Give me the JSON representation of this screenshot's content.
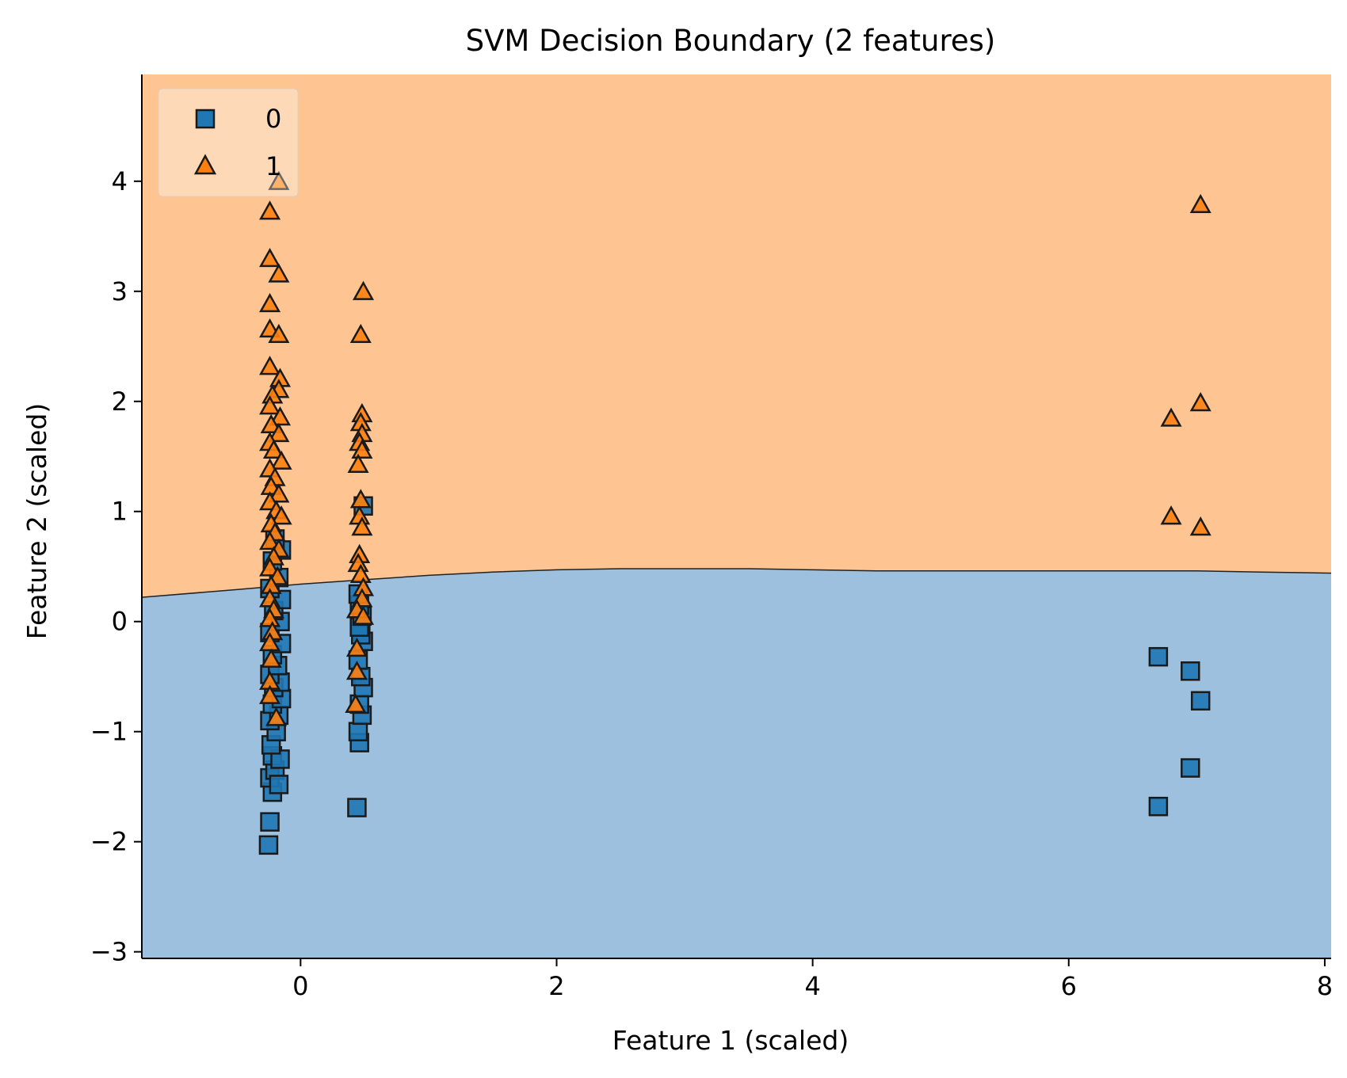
{
  "chart_data": {
    "type": "scatter",
    "title": "SVM Decision Boundary (2 features)",
    "xlabel": "Feature 1 (scaled)",
    "ylabel": "Feature 2 (scaled)",
    "xlim": [
      -1.24,
      8.05
    ],
    "ylim": [
      -3.06,
      4.97
    ],
    "xticks": [
      0,
      2,
      4,
      6,
      8
    ],
    "yticks": [
      -3,
      -2,
      -1,
      0,
      1,
      2,
      3,
      4
    ],
    "xtick_labels": [
      "0",
      "2",
      "4",
      "6",
      "8"
    ],
    "ytick_labels": [
      "−3",
      "−2",
      "−1",
      "0",
      "1",
      "2",
      "3",
      "4"
    ],
    "grid": false,
    "legend": {
      "placement": "top-left",
      "entries": [
        "0",
        "1"
      ]
    },
    "colors": {
      "class0_marker": "#1f77b4",
      "class1_marker": "#ff7f0e",
      "class0_region": "#9cc0dd",
      "class1_region": "#fec593",
      "marker_edge": "#1a1a1a"
    },
    "decision_boundary": {
      "x": [
        -1.24,
        -0.5,
        0,
        0.5,
        1.0,
        1.5,
        2.0,
        2.5,
        3.0,
        3.5,
        4.0,
        4.5,
        5.0,
        5.5,
        6.0,
        6.5,
        7.0,
        7.5,
        8.05
      ],
      "y": [
        0.22,
        0.29,
        0.34,
        0.38,
        0.42,
        0.45,
        0.47,
        0.48,
        0.48,
        0.48,
        0.47,
        0.46,
        0.46,
        0.46,
        0.46,
        0.46,
        0.46,
        0.45,
        0.44
      ]
    },
    "series": [
      {
        "name": "0",
        "marker": "square",
        "points": [
          [
            -0.25,
            -2.03
          ],
          [
            -0.24,
            -1.82
          ],
          [
            -0.22,
            -1.55
          ],
          [
            -0.24,
            -1.42
          ],
          [
            -0.2,
            -1.35
          ],
          [
            -0.22,
            -1.22
          ],
          [
            -0.17,
            -1.48
          ],
          [
            -0.16,
            -1.25
          ],
          [
            -0.23,
            -1.12
          ],
          [
            -0.19,
            -1.0
          ],
          [
            -0.24,
            -0.9
          ],
          [
            -0.17,
            -0.85
          ],
          [
            -0.22,
            -0.75
          ],
          [
            -0.15,
            -0.7
          ],
          [
            -0.21,
            -0.6
          ],
          [
            -0.16,
            -0.55
          ],
          [
            -0.24,
            -0.48
          ],
          [
            -0.18,
            -0.4
          ],
          [
            -0.22,
            -0.3
          ],
          [
            -0.15,
            -0.2
          ],
          [
            -0.24,
            -0.1
          ],
          [
            -0.16,
            0.0
          ],
          [
            -0.21,
            0.1
          ],
          [
            -0.15,
            0.2
          ],
          [
            -0.24,
            0.3
          ],
          [
            -0.17,
            0.4
          ],
          [
            -0.22,
            0.55
          ],
          [
            -0.15,
            0.65
          ],
          [
            -0.2,
            0.75
          ],
          [
            0.44,
            -1.69
          ],
          [
            0.46,
            -1.1
          ],
          [
            0.45,
            -1.0
          ],
          [
            0.48,
            -0.85
          ],
          [
            0.46,
            -0.75
          ],
          [
            0.49,
            -0.6
          ],
          [
            0.47,
            -0.5
          ],
          [
            0.45,
            -0.35
          ],
          [
            0.49,
            -0.18
          ],
          [
            0.47,
            -0.12
          ],
          [
            0.46,
            -0.05
          ],
          [
            0.48,
            0.05
          ],
          [
            0.46,
            0.15
          ],
          [
            0.45,
            0.25
          ],
          [
            0.49,
            1.05
          ],
          [
            6.7,
            -0.32
          ],
          [
            6.95,
            -0.45
          ],
          [
            7.03,
            -0.72
          ],
          [
            6.95,
            -1.33
          ],
          [
            6.7,
            -1.68
          ]
        ]
      },
      {
        "name": "1",
        "marker": "triangle",
        "points": [
          [
            -0.17,
            3.99
          ],
          [
            -0.24,
            3.72
          ],
          [
            -0.24,
            3.29
          ],
          [
            -0.17,
            3.15
          ],
          [
            -0.24,
            2.88
          ],
          [
            -0.24,
            2.65
          ],
          [
            -0.17,
            2.6
          ],
          [
            -0.24,
            2.31
          ],
          [
            -0.16,
            2.2
          ],
          [
            -0.17,
            2.1
          ],
          [
            -0.22,
            2.05
          ],
          [
            -0.24,
            1.95
          ],
          [
            -0.16,
            1.85
          ],
          [
            -0.23,
            1.78
          ],
          [
            -0.17,
            1.7
          ],
          [
            -0.24,
            1.62
          ],
          [
            -0.21,
            1.55
          ],
          [
            -0.15,
            1.45
          ],
          [
            -0.24,
            1.38
          ],
          [
            -0.2,
            1.3
          ],
          [
            -0.23,
            1.22
          ],
          [
            -0.17,
            1.15
          ],
          [
            -0.24,
            1.08
          ],
          [
            -0.19,
            1.0
          ],
          [
            -0.15,
            0.95
          ],
          [
            -0.23,
            0.88
          ],
          [
            -0.2,
            0.8
          ],
          [
            -0.24,
            0.72
          ],
          [
            -0.17,
            0.65
          ],
          [
            -0.21,
            0.58
          ],
          [
            -0.24,
            0.48
          ],
          [
            -0.18,
            0.4
          ],
          [
            -0.23,
            0.32
          ],
          [
            -0.24,
            0.2
          ],
          [
            -0.21,
            0.1
          ],
          [
            -0.24,
            0.02
          ],
          [
            -0.22,
            -0.1
          ],
          [
            -0.24,
            -0.2
          ],
          [
            -0.23,
            -0.35
          ],
          [
            -0.24,
            -0.55
          ],
          [
            -0.24,
            -0.68
          ],
          [
            -0.19,
            -0.88
          ],
          [
            0.49,
            2.99
          ],
          [
            0.47,
            2.6
          ],
          [
            0.48,
            1.88
          ],
          [
            0.47,
            1.8
          ],
          [
            0.48,
            1.7
          ],
          [
            0.46,
            1.62
          ],
          [
            0.48,
            1.55
          ],
          [
            0.45,
            1.42
          ],
          [
            0.47,
            1.1
          ],
          [
            0.46,
            0.95
          ],
          [
            0.48,
            0.85
          ],
          [
            0.46,
            0.6
          ],
          [
            0.45,
            0.52
          ],
          [
            0.47,
            0.42
          ],
          [
            0.49,
            0.3
          ],
          [
            0.48,
            0.2
          ],
          [
            0.44,
            0.1
          ],
          [
            0.49,
            0.04
          ],
          [
            0.44,
            -0.25
          ],
          [
            0.44,
            -0.46
          ],
          [
            0.43,
            -0.76
          ],
          [
            7.03,
            3.78
          ],
          [
            7.03,
            1.98
          ],
          [
            6.8,
            1.84
          ],
          [
            6.8,
            0.95
          ],
          [
            7.03,
            0.85
          ]
        ]
      }
    ]
  }
}
